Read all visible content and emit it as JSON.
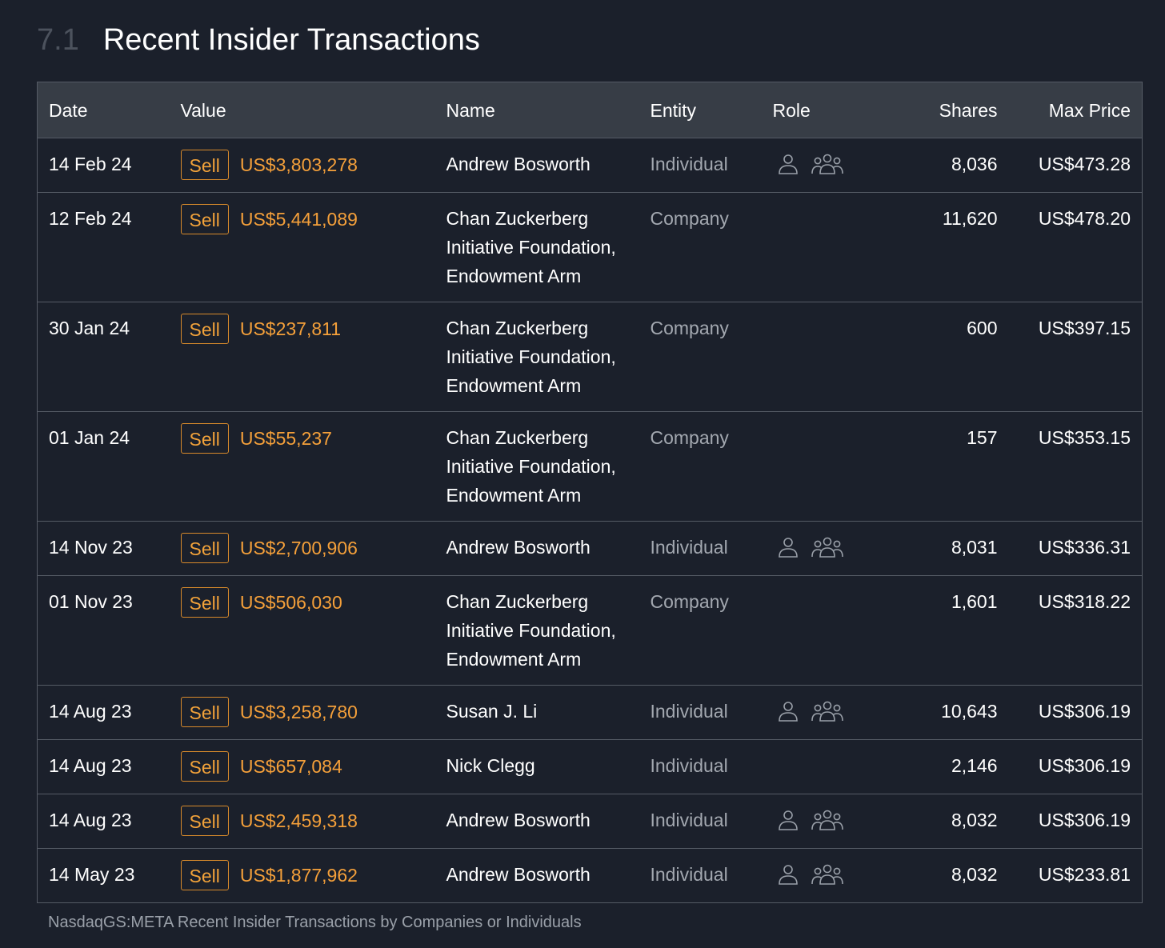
{
  "section": {
    "number": "7.1",
    "title": "Recent Insider Transactions"
  },
  "table": {
    "headers": {
      "date": "Date",
      "value": "Value",
      "name": "Name",
      "entity": "Entity",
      "role": "Role",
      "shares": "Shares",
      "max_price": "Max Price"
    },
    "rows": [
      {
        "date": "14 Feb 24",
        "type": "Sell",
        "value": "US$3,803,278",
        "name": [
          "Andrew Bosworth"
        ],
        "entity": "Individual",
        "role_icons": [
          "individual-icon",
          "group-icon"
        ],
        "shares": "8,036",
        "max_price": "US$473.28"
      },
      {
        "date": "12 Feb 24",
        "type": "Sell",
        "value": "US$5,441,089",
        "name": [
          "Chan Zuckerberg",
          "Initiative Foundation,",
          "Endowment Arm"
        ],
        "entity": "Company",
        "role_icons": [],
        "shares": "11,620",
        "max_price": "US$478.20"
      },
      {
        "date": "30 Jan 24",
        "type": "Sell",
        "value": "US$237,811",
        "name": [
          "Chan Zuckerberg",
          "Initiative Foundation,",
          "Endowment Arm"
        ],
        "entity": "Company",
        "role_icons": [],
        "shares": "600",
        "max_price": "US$397.15"
      },
      {
        "date": "01 Jan 24",
        "type": "Sell",
        "value": "US$55,237",
        "name": [
          "Chan Zuckerberg",
          "Initiative Foundation,",
          "Endowment Arm"
        ],
        "entity": "Company",
        "role_icons": [],
        "shares": "157",
        "max_price": "US$353.15"
      },
      {
        "date": "14 Nov 23",
        "type": "Sell",
        "value": "US$2,700,906",
        "name": [
          "Andrew Bosworth"
        ],
        "entity": "Individual",
        "role_icons": [
          "individual-icon",
          "group-icon"
        ],
        "shares": "8,031",
        "max_price": "US$336.31"
      },
      {
        "date": "01 Nov 23",
        "type": "Sell",
        "value": "US$506,030",
        "name": [
          "Chan Zuckerberg",
          "Initiative Foundation,",
          "Endowment Arm"
        ],
        "entity": "Company",
        "role_icons": [],
        "shares": "1,601",
        "max_price": "US$318.22"
      },
      {
        "date": "14 Aug 23",
        "type": "Sell",
        "value": "US$3,258,780",
        "name": [
          "Susan J. Li"
        ],
        "entity": "Individual",
        "role_icons": [
          "individual-icon",
          "group-icon"
        ],
        "shares": "10,643",
        "max_price": "US$306.19"
      },
      {
        "date": "14 Aug 23",
        "type": "Sell",
        "value": "US$657,084",
        "name": [
          "Nick Clegg"
        ],
        "entity": "Individual",
        "role_icons": [],
        "shares": "2,146",
        "max_price": "US$306.19"
      },
      {
        "date": "14 Aug 23",
        "type": "Sell",
        "value": "US$2,459,318",
        "name": [
          "Andrew Bosworth"
        ],
        "entity": "Individual",
        "role_icons": [
          "individual-icon",
          "group-icon"
        ],
        "shares": "8,032",
        "max_price": "US$306.19"
      },
      {
        "date": "14 May 23",
        "type": "Sell",
        "value": "US$1,877,962",
        "name": [
          "Andrew Bosworth"
        ],
        "entity": "Individual",
        "role_icons": [
          "individual-icon",
          "group-icon"
        ],
        "shares": "8,032",
        "max_price": "US$233.81"
      }
    ]
  },
  "caption": "NasdaqGS:META Recent Insider Transactions by Companies or Individuals",
  "colors": {
    "background": "#1b202b",
    "header_row": "#373d46",
    "border": "#555b65",
    "sell_accent": "#f2a23a",
    "muted_text": "#a3a8b0"
  }
}
